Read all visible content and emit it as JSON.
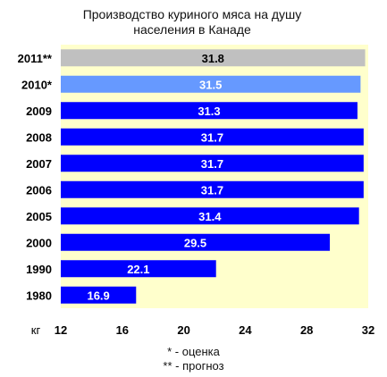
{
  "chart_data": {
    "type": "bar",
    "orientation": "horizontal",
    "title_lines": [
      "Производство куриного мяса на душу",
      "населения в Канаде"
    ],
    "categories": [
      "2011**",
      "2010*",
      "2009",
      "2008",
      "2007",
      "2006",
      "2005",
      "2000",
      "1990",
      "1980"
    ],
    "values": [
      31.8,
      31.5,
      31.3,
      31.7,
      31.7,
      31.7,
      31.4,
      29.5,
      22.1,
      16.9
    ],
    "value_labels": [
      "31.8",
      "31.5",
      "31.3",
      "31.7",
      "31.7",
      "31.7",
      "31.4",
      "29.5",
      "22.1",
      "16.9"
    ],
    "bar_kind": [
      "forecast",
      "estimate",
      "actual",
      "actual",
      "actual",
      "actual",
      "actual",
      "actual",
      "actual",
      "actual"
    ],
    "xlim": [
      12,
      32
    ],
    "x_ticks": [
      "12",
      "16",
      "20",
      "24",
      "28",
      "32"
    ],
    "x_unit_label": "кг",
    "grid": false,
    "colors": {
      "plot_background": "#ffffcc",
      "actual": "#0000ff",
      "estimate": "#6699ff",
      "forecast": "#c0c0c0",
      "actual_label": "#ffffff",
      "estimate_label": "#ffffff",
      "forecast_label": "#000000"
    }
  },
  "footnotes": [
    "* - оценка",
    "** - прогноз"
  ]
}
